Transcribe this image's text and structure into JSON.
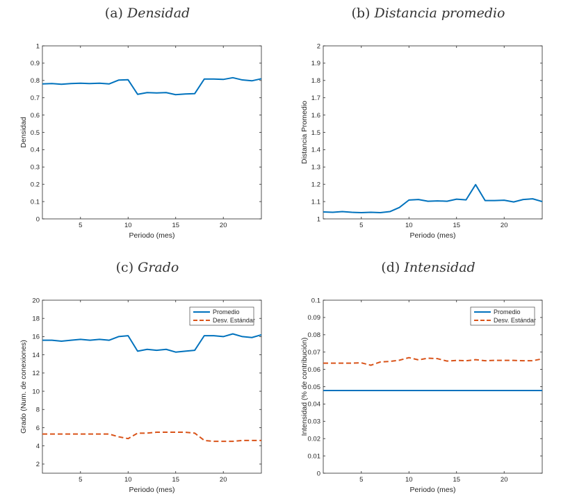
{
  "colors": {
    "mean": "#0072BD",
    "std": "#D95319",
    "axis": "#262626"
  },
  "chart_data": [
    {
      "type": "line",
      "panel_label": "(a)",
      "title": "Densidad",
      "xlabel": "Periodo (mes)",
      "ylabel": "Densidad",
      "xlim": [
        1,
        24
      ],
      "ylim": [
        0,
        1
      ],
      "xticks": [
        5,
        10,
        15,
        20
      ],
      "yticks": [
        0,
        0.1,
        0.2,
        0.3,
        0.4,
        0.5,
        0.6,
        0.7,
        0.8,
        0.9,
        1
      ],
      "ytick_labels": [
        "0",
        "0.1",
        "0.2",
        "0.3",
        "0.4",
        "0.5",
        "0.6",
        "0.7",
        "0.8",
        "0.9",
        "1"
      ],
      "x": [
        1,
        2,
        3,
        4,
        5,
        6,
        7,
        8,
        9,
        10,
        11,
        12,
        13,
        14,
        15,
        16,
        17,
        18,
        19,
        20,
        21,
        22,
        23,
        24
      ],
      "series": [
        {
          "name": "Densidad",
          "style": "solid",
          "color": "#0072BD",
          "values": [
            0.78,
            0.782,
            0.778,
            0.782,
            0.784,
            0.782,
            0.784,
            0.78,
            0.802,
            0.804,
            0.72,
            0.73,
            0.728,
            0.73,
            0.718,
            0.722,
            0.724,
            0.808,
            0.808,
            0.806,
            0.816,
            0.803,
            0.798,
            0.81
          ]
        }
      ],
      "legend": []
    },
    {
      "type": "line",
      "panel_label": "(b)",
      "title": "Distancia promedio",
      "xlabel": "Periodo (mes)",
      "ylabel": "Distancia Promedio",
      "xlim": [
        1,
        24
      ],
      "ylim": [
        1,
        2
      ],
      "xticks": [
        5,
        10,
        15,
        20
      ],
      "yticks": [
        1,
        1.1,
        1.2,
        1.3,
        1.4,
        1.5,
        1.6,
        1.7,
        1.8,
        1.9,
        2
      ],
      "ytick_labels": [
        "1",
        "1.1",
        "1.2",
        "1.3",
        "1.4",
        "1.5",
        "1.6",
        "1.7",
        "1.8",
        "1.9",
        "2"
      ],
      "x": [
        1,
        2,
        3,
        4,
        5,
        6,
        7,
        8,
        9,
        10,
        11,
        12,
        13,
        14,
        15,
        16,
        17,
        18,
        19,
        20,
        21,
        22,
        23,
        24
      ],
      "series": [
        {
          "name": "Distancia promedio",
          "style": "solid",
          "color": "#0072BD",
          "values": [
            1.04,
            1.038,
            1.042,
            1.038,
            1.036,
            1.038,
            1.036,
            1.042,
            1.066,
            1.109,
            1.112,
            1.102,
            1.104,
            1.102,
            1.114,
            1.11,
            1.198,
            1.106,
            1.106,
            1.108,
            1.098,
            1.112,
            1.116,
            1.1
          ]
        }
      ],
      "legend": []
    },
    {
      "type": "line",
      "panel_label": "(c)",
      "title": "Grado",
      "xlabel": "Periodo (mes)",
      "ylabel": "Grado (Num. de conexiones)",
      "xlim": [
        1,
        24
      ],
      "ylim": [
        1,
        20
      ],
      "xticks": [
        5,
        10,
        15,
        20
      ],
      "yticks": [
        2,
        4,
        6,
        8,
        10,
        12,
        14,
        16,
        18,
        20
      ],
      "ytick_labels": [
        "2",
        "4",
        "6",
        "8",
        "10",
        "12",
        "14",
        "16",
        "18",
        "20"
      ],
      "x": [
        1,
        2,
        3,
        4,
        5,
        6,
        7,
        8,
        9,
        10,
        11,
        12,
        13,
        14,
        15,
        16,
        17,
        18,
        19,
        20,
        21,
        22,
        23,
        24
      ],
      "series": [
        {
          "name": "Promedio",
          "style": "solid",
          "color": "#0072BD",
          "values": [
            15.6,
            15.6,
            15.5,
            15.6,
            15.7,
            15.6,
            15.7,
            15.6,
            16.0,
            16.1,
            14.4,
            14.6,
            14.5,
            14.6,
            14.3,
            14.4,
            14.5,
            16.1,
            16.1,
            16.0,
            16.3,
            16.0,
            15.9,
            16.2
          ]
        },
        {
          "name": "Desv. Estándar",
          "style": "dashed",
          "color": "#D95319",
          "values": [
            5.3,
            5.3,
            5.3,
            5.3,
            5.3,
            5.3,
            5.3,
            5.3,
            5.0,
            4.8,
            5.4,
            5.4,
            5.5,
            5.5,
            5.5,
            5.5,
            5.4,
            4.6,
            4.5,
            4.5,
            4.5,
            4.6,
            4.6,
            4.6
          ]
        }
      ],
      "legend": [
        "Promedio",
        "Desv. Estándar"
      ],
      "legend_position": "top-right"
    },
    {
      "type": "line",
      "panel_label": "(d)",
      "title": "Intensidad",
      "xlabel": "Periodo (mes)",
      "ylabel": "Intensidad (% de contribución)",
      "xlim": [
        1,
        24
      ],
      "ylim": [
        0,
        0.1
      ],
      "xticks": [
        5,
        10,
        15,
        20
      ],
      "yticks": [
        0,
        0.01,
        0.02,
        0.03,
        0.04,
        0.05,
        0.06,
        0.07,
        0.08,
        0.09,
        0.1
      ],
      "ytick_labels": [
        "0",
        "0.01",
        "0.02",
        "0.03",
        "0.04",
        "0.05",
        "0.06",
        "0.07",
        "0.08",
        "0.09",
        "0.1"
      ],
      "x": [
        1,
        2,
        3,
        4,
        5,
        6,
        7,
        8,
        9,
        10,
        11,
        12,
        13,
        14,
        15,
        16,
        17,
        18,
        19,
        20,
        21,
        22,
        23,
        24
      ],
      "series": [
        {
          "name": "Promedio",
          "style": "solid",
          "color": "#0072BD",
          "values": [
            0.0478,
            0.0478,
            0.0478,
            0.0478,
            0.0478,
            0.0478,
            0.0478,
            0.0478,
            0.0478,
            0.0478,
            0.0478,
            0.0478,
            0.0478,
            0.0478,
            0.0478,
            0.0478,
            0.0478,
            0.0478,
            0.0478,
            0.0478,
            0.0478,
            0.0478,
            0.0478,
            0.0478
          ]
        },
        {
          "name": "Desv. Estándar",
          "style": "dashed",
          "color": "#D95319",
          "values": [
            0.0636,
            0.0636,
            0.0636,
            0.0636,
            0.0638,
            0.0624,
            0.0643,
            0.0646,
            0.0653,
            0.0668,
            0.0655,
            0.0665,
            0.0662,
            0.0648,
            0.0652,
            0.065,
            0.0656,
            0.065,
            0.0652,
            0.0652,
            0.0652,
            0.065,
            0.065,
            0.0661
          ]
        }
      ],
      "legend": [
        "Promedio",
        "Desv. Estándar"
      ],
      "legend_position": "top-right"
    }
  ]
}
